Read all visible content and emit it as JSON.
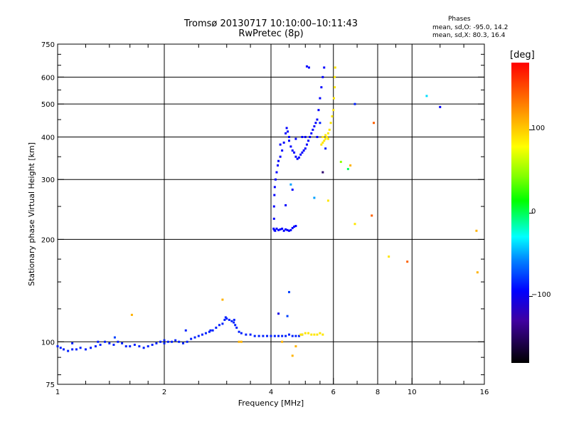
{
  "header": {
    "title_line1": "Tromsø 20130717 10:10:00–10:11:43",
    "title_line2": "RwPretec (8p)"
  },
  "phase_info": {
    "heading": "Phases",
    "line_o": "mean, sd,O: -95.0, 14.2",
    "line_x": "mean, sd,X:  80.3, 16.4"
  },
  "colorbar": {
    "unit": "[deg]",
    "ticks": [
      {
        "label": "100",
        "value": 100
      },
      {
        "label": "0",
        "value": 0
      },
      {
        "label": "−100",
        "value": -100
      }
    ],
    "range": [
      -180,
      180
    ]
  },
  "chart_data": {
    "type": "scatter",
    "title": "Tromsø 20130717 10:10:00–10:11:43",
    "subtitle": "RwPretec (8p)",
    "xlabel": "Frequency [MHz]",
    "ylabel": "Stationary phase Virtual Height [km]",
    "xscale": "log",
    "yscale": "log",
    "xlim": [
      1,
      16
    ],
    "ylim": [
      75,
      750
    ],
    "xticks": [
      {
        "value": 1,
        "label": "1"
      },
      {
        "value": 2,
        "label": "2"
      },
      {
        "value": 4,
        "label": "4"
      },
      {
        "value": 6,
        "label": "6"
      },
      {
        "value": 8,
        "label": "8"
      },
      {
        "value": 10,
        "label": "10"
      },
      {
        "value": 16,
        "label": "16"
      }
    ],
    "x_minor_ticks": [
      1.2,
      1.4,
      1.6,
      1.8,
      2.5,
      3,
      3.5,
      4.5,
      5,
      5.5,
      7,
      9,
      12,
      14
    ],
    "yticks": [
      {
        "value": 75,
        "label": "75"
      },
      {
        "value": 100,
        "label": "100"
      },
      {
        "value": 200,
        "label": "200"
      },
      {
        "value": 300,
        "label": "300"
      },
      {
        "value": 400,
        "label": "400"
      },
      {
        "value": 500,
        "label": "500"
      },
      {
        "value": 600,
        "label": "600"
      },
      {
        "value": 750,
        "label": "750"
      }
    ],
    "grid_x": [
      2,
      4,
      6,
      8,
      10
    ],
    "grid_y": [
      100,
      200,
      300,
      400,
      500,
      600
    ],
    "grid": true,
    "color_key": "phase [deg]",
    "series": [
      {
        "points": [
          [
            1.0,
            97,
            -100
          ],
          [
            1.02,
            96,
            -100
          ],
          [
            1.04,
            95,
            -100
          ],
          [
            1.07,
            94,
            -100
          ],
          [
            1.1,
            95,
            -100
          ],
          [
            1.13,
            95,
            -100
          ],
          [
            1.16,
            96,
            -100
          ],
          [
            1.2,
            95,
            -100
          ],
          [
            1.24,
            96,
            -100
          ],
          [
            1.28,
            97,
            -100
          ],
          [
            1.32,
            98,
            -100
          ],
          [
            1.36,
            100,
            -100
          ],
          [
            1.4,
            99,
            -100
          ],
          [
            1.44,
            98,
            -100
          ],
          [
            1.48,
            100,
            -100
          ],
          [
            1.52,
            99,
            -100
          ],
          [
            1.56,
            97,
            -100
          ],
          [
            1.6,
            97,
            -100
          ],
          [
            1.65,
            98,
            -100
          ],
          [
            1.7,
            97,
            -100
          ],
          [
            1.75,
            96,
            -100
          ],
          [
            1.8,
            97,
            -100
          ],
          [
            1.85,
            98,
            -100
          ],
          [
            1.9,
            99,
            -100
          ],
          [
            1.95,
            100,
            -100
          ],
          [
            2.0,
            99,
            -100
          ],
          [
            2.05,
            100,
            -100
          ],
          [
            2.1,
            100,
            -100
          ],
          [
            2.15,
            101,
            -100
          ],
          [
            2.2,
            100,
            -100
          ],
          [
            2.26,
            99,
            -100
          ],
          [
            2.32,
            100,
            -100
          ],
          [
            2.38,
            102,
            -100
          ],
          [
            2.44,
            103,
            -100
          ],
          [
            2.5,
            104,
            -100
          ],
          [
            2.56,
            105,
            -100
          ],
          [
            2.62,
            106,
            -100
          ],
          [
            2.68,
            107,
            -100
          ],
          [
            2.74,
            108,
            -100
          ],
          [
            2.8,
            110,
            -100
          ],
          [
            2.86,
            112,
            -100
          ],
          [
            2.92,
            113,
            -100
          ],
          [
            2.96,
            116,
            -100
          ],
          [
            3.0,
            117,
            -100
          ],
          [
            3.05,
            116,
            -100
          ],
          [
            3.1,
            115,
            -100
          ],
          [
            3.14,
            114,
            -100
          ],
          [
            3.17,
            112,
            -100
          ],
          [
            3.2,
            110,
            -100
          ],
          [
            3.25,
            107,
            -100
          ],
          [
            3.3,
            106,
            -100
          ],
          [
            3.4,
            105,
            -100
          ],
          [
            3.5,
            105,
            -100
          ],
          [
            3.6,
            104,
            -100
          ],
          [
            3.7,
            104,
            -100
          ],
          [
            3.8,
            104,
            -100
          ],
          [
            3.9,
            104,
            -100
          ],
          [
            4.0,
            104,
            -100
          ],
          [
            4.1,
            104,
            -100
          ],
          [
            4.2,
            104,
            -100
          ],
          [
            4.3,
            104,
            -100
          ],
          [
            4.4,
            104,
            -100
          ],
          [
            4.5,
            105,
            -100
          ],
          [
            4.6,
            104,
            -100
          ],
          [
            4.7,
            104,
            -100
          ],
          [
            4.8,
            104,
            -100
          ],
          [
            4.9,
            105,
            -100
          ]
        ]
      },
      {
        "points": [
          [
            4.07,
            215,
            -110
          ],
          [
            4.09,
            213,
            -110
          ],
          [
            4.11,
            212,
            -110
          ],
          [
            4.15,
            215,
            -110
          ],
          [
            4.2,
            213,
            -110
          ],
          [
            4.25,
            214,
            -110
          ],
          [
            4.3,
            215,
            -110
          ],
          [
            4.35,
            212,
            -110
          ],
          [
            4.4,
            214,
            -110
          ],
          [
            4.45,
            213,
            -110
          ],
          [
            4.5,
            212,
            -110
          ],
          [
            4.55,
            213,
            -110
          ],
          [
            4.6,
            216,
            -110
          ],
          [
            4.65,
            218,
            -110
          ],
          [
            4.7,
            219,
            -110
          ],
          [
            4.08,
            230,
            -110
          ],
          [
            4.08,
            250,
            -110
          ],
          [
            4.09,
            270,
            -110
          ],
          [
            4.1,
            285,
            -110
          ],
          [
            4.12,
            300,
            -110
          ],
          [
            4.15,
            315,
            -110
          ],
          [
            4.18,
            330,
            -110
          ],
          [
            4.2,
            340,
            -110
          ],
          [
            4.25,
            350,
            -110
          ],
          [
            4.3,
            365,
            -110
          ],
          [
            4.35,
            385,
            -110
          ],
          [
            4.4,
            410,
            -110
          ],
          [
            4.43,
            425,
            -110
          ],
          [
            4.46,
            415,
            -110
          ],
          [
            4.5,
            390,
            -110
          ],
          [
            4.55,
            375,
            -110
          ],
          [
            4.6,
            365,
            -110
          ],
          [
            4.65,
            360,
            -110
          ],
          [
            4.7,
            350,
            -110
          ],
          [
            4.75,
            345,
            -110
          ],
          [
            4.8,
            348,
            -110
          ],
          [
            4.85,
            355,
            -110
          ],
          [
            4.9,
            360,
            -110
          ],
          [
            4.95,
            365,
            -110
          ],
          [
            5.0,
            370,
            -110
          ],
          [
            5.05,
            380,
            -110
          ],
          [
            5.1,
            390,
            -110
          ],
          [
            5.15,
            400,
            -110
          ],
          [
            5.2,
            410,
            -110
          ],
          [
            5.25,
            420,
            -110
          ],
          [
            5.3,
            430,
            -110
          ],
          [
            5.35,
            440,
            -110
          ],
          [
            5.4,
            450,
            -110
          ],
          [
            5.45,
            480,
            -110
          ],
          [
            5.5,
            520,
            -110
          ],
          [
            5.55,
            560,
            -110
          ],
          [
            5.6,
            600,
            -110
          ],
          [
            5.65,
            640,
            -110
          ],
          [
            4.5,
            400,
            -110
          ],
          [
            4.7,
            395,
            -110
          ],
          [
            4.9,
            400,
            -110
          ],
          [
            5.0,
            400,
            -110
          ],
          [
            5.05,
            645,
            -110
          ],
          [
            5.12,
            640,
            -110
          ]
        ]
      },
      {
        "points": [
          [
            3.25,
            100,
            120
          ],
          [
            3.3,
            100,
            120
          ],
          [
            4.85,
            105,
            100
          ],
          [
            4.9,
            105,
            100
          ],
          [
            5.0,
            106,
            100
          ],
          [
            5.1,
            106,
            100
          ],
          [
            5.2,
            105,
            100
          ],
          [
            5.3,
            105,
            100
          ],
          [
            5.4,
            105,
            100
          ],
          [
            5.5,
            106,
            100
          ],
          [
            5.6,
            105,
            100
          ],
          [
            5.55,
            380,
            100
          ],
          [
            5.6,
            385,
            100
          ],
          [
            5.65,
            390,
            100
          ],
          [
            5.7,
            395,
            100
          ],
          [
            5.75,
            400,
            100
          ],
          [
            5.8,
            410,
            100
          ],
          [
            5.85,
            420,
            100
          ],
          [
            5.9,
            440,
            100
          ],
          [
            5.95,
            460,
            100
          ],
          [
            6.0,
            480,
            100
          ],
          [
            6.02,
            520,
            100
          ],
          [
            6.05,
            560,
            100
          ],
          [
            6.05,
            600,
            100
          ],
          [
            6.07,
            640,
            100
          ],
          [
            5.6,
            400,
            100
          ],
          [
            5.7,
            405,
            100
          ],
          [
            5.8,
            395,
            100
          ]
        ]
      },
      {
        "points": [
          [
            1.1,
            99,
            -100
          ],
          [
            1.3,
            100,
            -100
          ],
          [
            1.45,
            103,
            -90
          ],
          [
            1.62,
            120,
            120
          ],
          [
            2.0,
            101,
            -100
          ],
          [
            2.3,
            108,
            -100
          ],
          [
            2.7,
            108,
            -100
          ],
          [
            2.92,
            133,
            120
          ],
          [
            2.98,
            118,
            -100
          ],
          [
            3.15,
            116,
            -100
          ],
          [
            4.5,
            140,
            -90
          ],
          [
            4.45,
            119,
            -90
          ],
          [
            4.2,
            121,
            -120
          ],
          [
            4.3,
            100,
            120
          ],
          [
            4.6,
            91,
            120
          ],
          [
            4.7,
            97,
            120
          ],
          [
            5.6,
            315,
            -160
          ],
          [
            5.7,
            370,
            -100
          ],
          [
            5.3,
            265,
            -60
          ],
          [
            5.8,
            260,
            100
          ],
          [
            6.3,
            338,
            60
          ],
          [
            6.6,
            322,
            0
          ],
          [
            6.7,
            330,
            120
          ],
          [
            6.9,
            222,
            100
          ],
          [
            6.9,
            500,
            -100
          ],
          [
            7.8,
            440,
            150
          ],
          [
            7.7,
            235,
            150
          ],
          [
            8.6,
            178,
            100
          ],
          [
            9.7,
            172,
            150
          ],
          [
            11.0,
            528,
            -40
          ],
          [
            12.0,
            490,
            -110
          ],
          [
            15.2,
            212,
            120
          ],
          [
            15.3,
            160,
            120
          ],
          [
            4.55,
            290,
            -60
          ],
          [
            4.6,
            280,
            -110
          ],
          [
            4.4,
            252,
            -110
          ],
          [
            5.5,
            440,
            -100
          ],
          [
            5.4,
            400,
            -110
          ],
          [
            4.25,
            380,
            -110
          ]
        ]
      }
    ]
  }
}
